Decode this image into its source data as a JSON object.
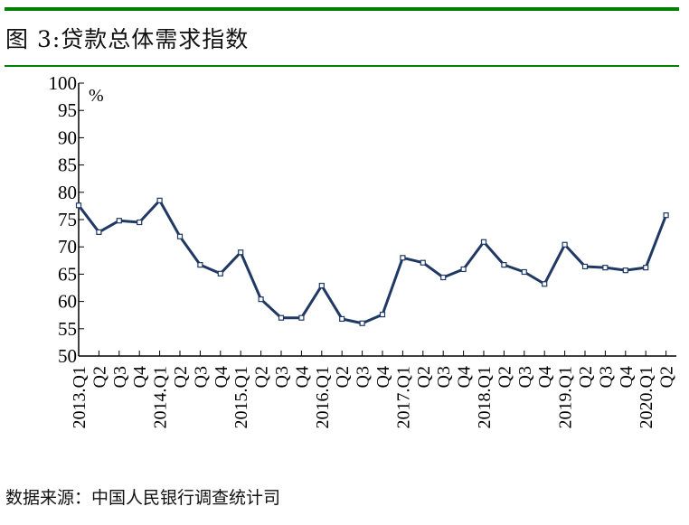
{
  "title": "图 3:贷款总体需求指数",
  "source": "数据来源：中国人民银行调查统计司",
  "colors": {
    "line": "#1f3864",
    "rule": "#008000"
  },
  "chart_data": {
    "type": "line",
    "title": "图 3:贷款总体需求指数",
    "ylabel": "%",
    "xlabel": "",
    "ylim": [
      50,
      100
    ],
    "yticks": [
      50,
      55,
      60,
      65,
      70,
      75,
      80,
      85,
      90,
      95,
      100
    ],
    "grid": false,
    "categories": [
      "2013.Q1",
      "Q2",
      "Q3",
      "Q4",
      "2014.Q1",
      "Q2",
      "Q3",
      "Q4",
      "2015.Q1",
      "Q2",
      "Q3",
      "Q4",
      "2016.Q1",
      "Q2",
      "Q3",
      "Q4",
      "2017.Q1",
      "Q2",
      "Q3",
      "Q4",
      "2018.Q1",
      "Q2",
      "Q3",
      "Q4",
      "2019.Q1",
      "Q2",
      "Q3",
      "Q4",
      "2020.Q1",
      "Q2"
    ],
    "series": [
      {
        "name": "贷款总体需求指数",
        "values": [
          77.6,
          72.7,
          74.8,
          74.5,
          78.5,
          71.9,
          66.7,
          65.1,
          69.0,
          60.4,
          57.0,
          57.0,
          62.9,
          56.8,
          56.0,
          57.6,
          68.0,
          67.1,
          64.4,
          65.9,
          70.9,
          66.7,
          65.4,
          63.2,
          70.4,
          66.4,
          66.2,
          65.7,
          66.2,
          75.8
        ]
      }
    ]
  }
}
